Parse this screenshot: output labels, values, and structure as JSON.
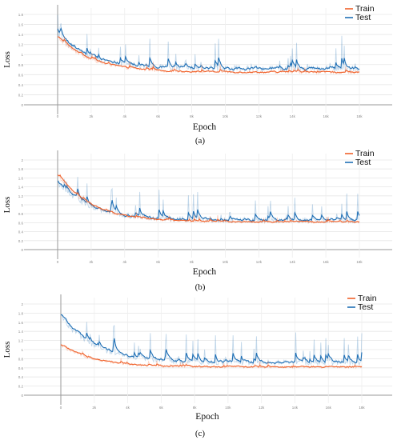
{
  "chart_data": [
    {
      "type": "line",
      "panel_label": "(a)",
      "xlabel": "Epoch",
      "ylabel": "Loss",
      "x_ticks": [
        "0",
        "2k",
        "4k",
        "6k",
        "8k",
        "10k",
        "12k",
        "14k",
        "16k",
        "18k"
      ],
      "y_ticks": [
        "0",
        "0.2",
        "0.4",
        "0.6",
        "0.8",
        "1",
        "1.2",
        "1.4",
        "1.6",
        "1.8"
      ],
      "xlim": [
        0,
        18000
      ],
      "ylim": [
        0,
        1.8
      ],
      "legend": "top-right",
      "grid": true,
      "series": [
        {
          "name": "Train",
          "color": "#f0622b",
          "start": 1.35,
          "floor": 0.65,
          "noise": 0.03,
          "spikes": 0.15
        },
        {
          "name": "Test",
          "color": "#1f6fb5",
          "start": 1.4,
          "floor": 0.72,
          "noise": 0.06,
          "spikes": 0.75
        }
      ]
    },
    {
      "type": "line",
      "panel_label": "(b)",
      "xlabel": "Epoch",
      "ylabel": "Loss",
      "x_ticks": [
        "0",
        "2k",
        "4k",
        "6k",
        "8k",
        "10k",
        "12k",
        "14k",
        "16k",
        "18k"
      ],
      "y_ticks": [
        "0",
        "0.2",
        "0.4",
        "0.6",
        "0.8",
        "1",
        "1.2",
        "1.4",
        "1.6",
        "1.8",
        "2"
      ],
      "xlim": [
        0,
        18000
      ],
      "ylim": [
        0,
        2
      ],
      "legend": "top-right",
      "grid": true,
      "series": [
        {
          "name": "Train",
          "color": "#f0622b",
          "start": 1.65,
          "floor": 0.62,
          "noise": 0.03,
          "spikes": 0.15
        },
        {
          "name": "Test",
          "color": "#1f6fb5",
          "start": 1.5,
          "floor": 0.66,
          "noise": 0.06,
          "spikes": 0.65
        }
      ]
    },
    {
      "type": "line",
      "panel_label": "(c)",
      "xlabel": "Epoch",
      "ylabel": "Loss",
      "x_ticks": [
        "0",
        "2k",
        "4k",
        "6k",
        "8k",
        "10k",
        "12k",
        "14k",
        "16k",
        "18k"
      ],
      "y_ticks": [
        "0",
        "0.2",
        "0.4",
        "0.6",
        "0.8",
        "1",
        "1.2",
        "1.4",
        "1.6",
        "1.8",
        "2"
      ],
      "xlim": [
        0,
        18000
      ],
      "ylim": [
        0,
        2
      ],
      "legend": "top-right",
      "grid": true,
      "series": [
        {
          "name": "Train",
          "color": "#f0622b",
          "start": 1.1,
          "floor": 0.62,
          "noise": 0.03,
          "spikes": 0.12
        },
        {
          "name": "Test",
          "color": "#1f6fb5",
          "start": 1.75,
          "floor": 0.72,
          "noise": 0.06,
          "spikes": 0.7
        }
      ]
    }
  ]
}
